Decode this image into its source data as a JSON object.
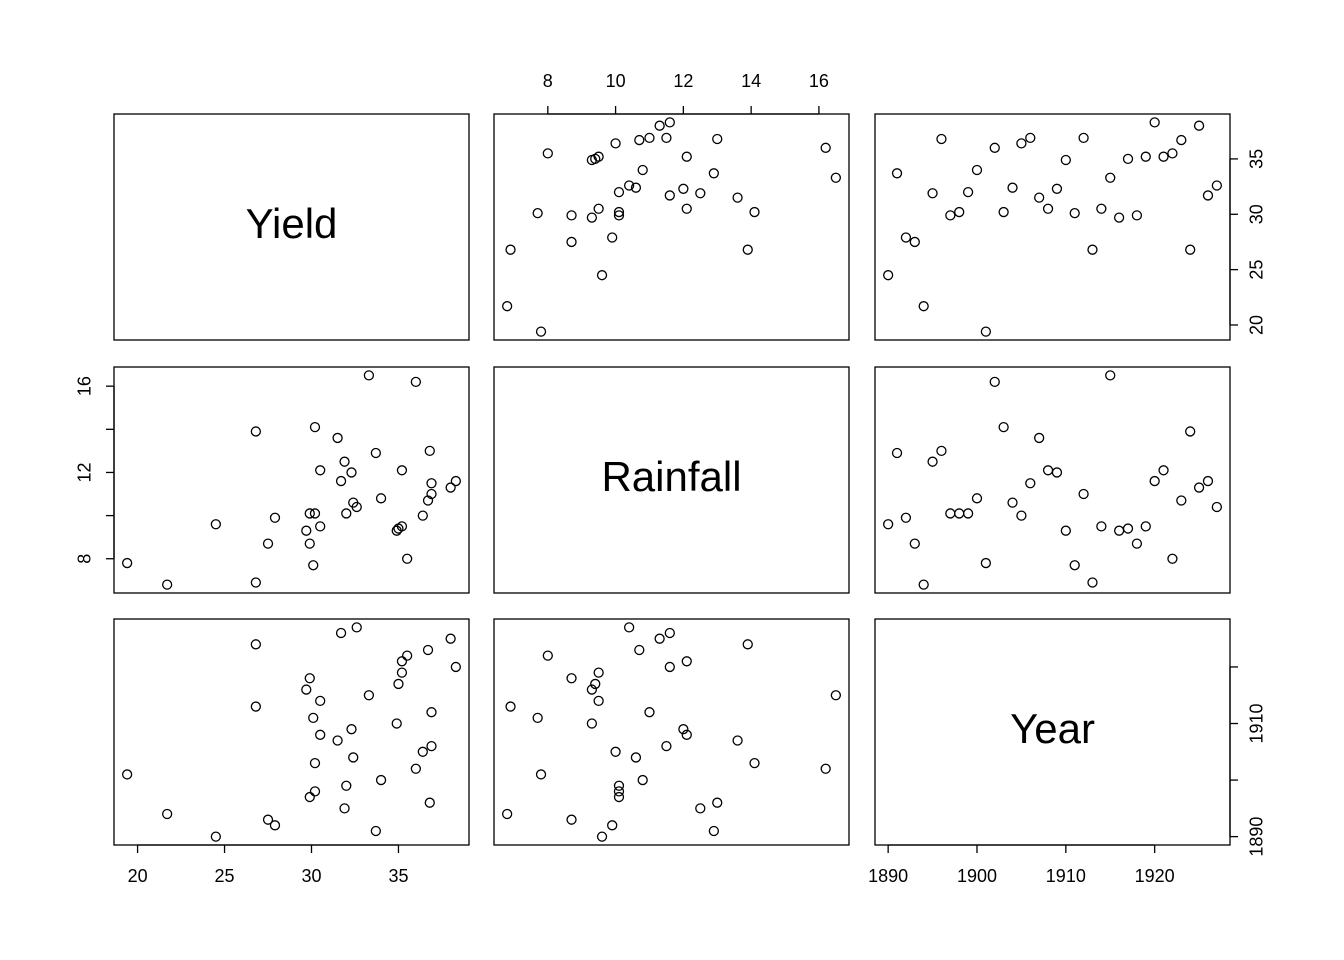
{
  "chart_data": {
    "type": "scatter_matrix",
    "variables": [
      {
        "name": "Yield",
        "lim": [
          18.644,
          39.056
        ],
        "ticks": [
          20,
          25,
          30,
          35
        ],
        "values": [
          24.5,
          33.7,
          27.9,
          27.5,
          21.7,
          31.9,
          36.8,
          29.9,
          30.2,
          32.0,
          34.0,
          19.4,
          36.0,
          30.2,
          32.4,
          36.4,
          36.9,
          31.5,
          30.5,
          32.3,
          34.9,
          30.1,
          36.9,
          26.8,
          30.5,
          33.3,
          29.7,
          35.0,
          29.9,
          35.2,
          38.3,
          35.2,
          35.5,
          36.7,
          26.8,
          38.0,
          31.7,
          32.6
        ]
      },
      {
        "name": "Rainfall",
        "lim": [
          6.412,
          16.888
        ],
        "ticks": [
          8,
          10,
          12,
          14,
          16
        ],
        "values": [
          9.6,
          12.9,
          9.9,
          8.7,
          6.8,
          12.5,
          13.0,
          10.1,
          10.1,
          10.1,
          10.8,
          7.8,
          16.2,
          14.1,
          10.6,
          10.0,
          11.5,
          13.6,
          12.1,
          12.0,
          9.3,
          7.7,
          11.0,
          6.9,
          9.5,
          16.5,
          9.3,
          9.4,
          8.7,
          9.5,
          11.6,
          12.1,
          8.0,
          10.7,
          13.9,
          11.3,
          11.6,
          10.4
        ]
      },
      {
        "name": "Year",
        "lim": [
          1888.52,
          1928.48
        ],
        "ticks": [
          1890,
          1900,
          1910,
          1920
        ],
        "values": [
          1890,
          1891,
          1892,
          1893,
          1894,
          1895,
          1896,
          1897,
          1898,
          1899,
          1900,
          1901,
          1902,
          1903,
          1904,
          1905,
          1906,
          1907,
          1908,
          1909,
          1910,
          1911,
          1912,
          1913,
          1914,
          1915,
          1916,
          1917,
          1918,
          1919,
          1920,
          1921,
          1922,
          1923,
          1924,
          1925,
          1926,
          1927
        ]
      }
    ],
    "marker_color": "#000000"
  }
}
